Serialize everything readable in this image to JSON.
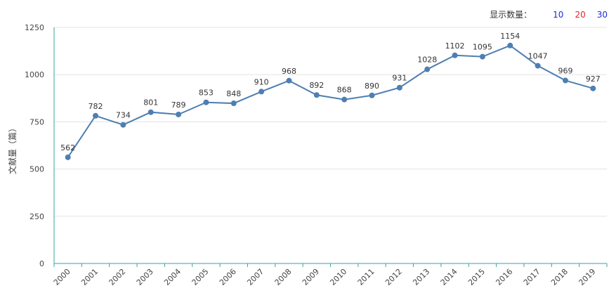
{
  "display_count": {
    "label": "显示数量：",
    "options": [
      {
        "value": "10",
        "color": "#1c2bd6"
      },
      {
        "value": "20",
        "color": "#e0252c"
      },
      {
        "value": "30",
        "color": "#1c2bd6"
      }
    ]
  },
  "colors": {
    "line": "#4d7fb2",
    "axis": "#3aa0a6",
    "grid": "#e3e3e3"
  },
  "chart_data": {
    "type": "line",
    "ylabel": "文献量（篇）",
    "xlabel": "",
    "ylim": [
      0,
      1250
    ],
    "yticks": [
      0,
      250,
      500,
      750,
      1000,
      1250
    ],
    "grid": true,
    "x": [
      "2000",
      "2001",
      "2002",
      "2003",
      "2004",
      "2005",
      "2006",
      "2007",
      "2008",
      "2009",
      "2010",
      "2011",
      "2012",
      "2013",
      "2014",
      "2015",
      "2016",
      "2017",
      "2018",
      "2019"
    ],
    "series": [
      {
        "values": [
          562,
          782,
          734,
          801,
          789,
          853,
          848,
          910,
          968,
          892,
          868,
          890,
          931,
          1028,
          1102,
          1095,
          1154,
          1047,
          969,
          927
        ]
      }
    ]
  }
}
